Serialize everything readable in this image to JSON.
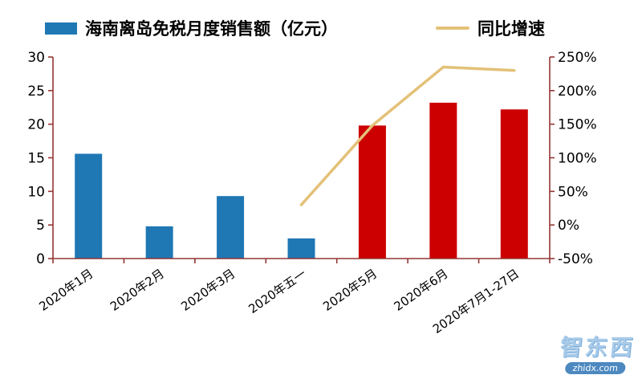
{
  "watermark": {
    "brand": "智东西",
    "domain": "zhidx.com"
  },
  "chart_data": {
    "type": "bar+line",
    "title": "",
    "categories": [
      "2020年1月",
      "2020年2月",
      "2020年3月",
      "2020年五一",
      "2020年5月",
      "2020年6月",
      "2020年7月1-27日"
    ],
    "series": [
      {
        "name": "海南离岛免税月度销售额（亿元）",
        "type": "bar",
        "axis": "left",
        "unit": "亿元",
        "values": [
          15.6,
          4.8,
          9.3,
          3.0,
          19.8,
          23.2,
          22.2
        ],
        "colors": [
          "#1F77B4",
          "#1F77B4",
          "#1F77B4",
          "#1F77B4",
          "#CC0000",
          "#CC0000",
          "#CC0000"
        ]
      },
      {
        "name": "同比增速",
        "type": "line",
        "axis": "right",
        "unit": "%",
        "values": [
          null,
          null,
          null,
          30,
          148,
          235,
          230
        ],
        "color": "#E3C178"
      }
    ],
    "left_axis": {
      "min": 0,
      "max": 30,
      "ticks": [
        0,
        5,
        10,
        15,
        20,
        25,
        30
      ]
    },
    "right_axis": {
      "min": -50,
      "max": 250,
      "ticks": [
        "-50%",
        "0%",
        "50%",
        "100%",
        "150%",
        "200%",
        "250%"
      ]
    },
    "grid": false,
    "legend_position": "top",
    "colors": {
      "axis": "#943634",
      "text": "#000000"
    }
  }
}
